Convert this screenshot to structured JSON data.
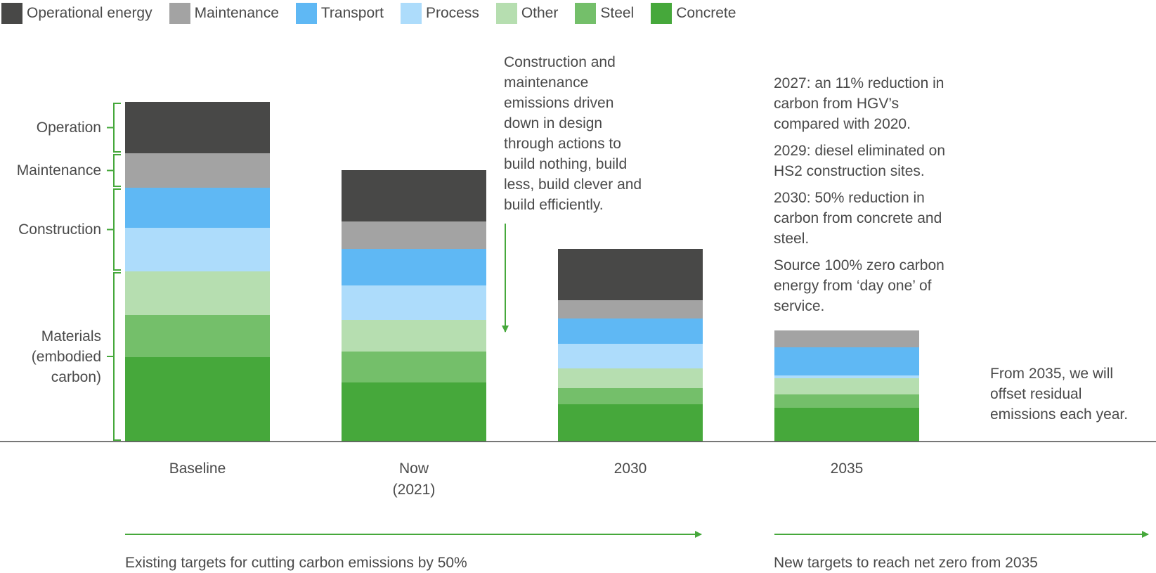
{
  "chart_data": {
    "type": "bar",
    "stacked": true,
    "categories": [
      "Baseline",
      "Now\n(2021)",
      "2030",
      "2035"
    ],
    "series": [
      {
        "name": "Concrete",
        "color": "#46a83b",
        "values": [
          120,
          84,
          53,
          48
        ]
      },
      {
        "name": "Steel",
        "color": "#74bf6a",
        "values": [
          60,
          44,
          23,
          19
        ]
      },
      {
        "name": "Other",
        "color": "#b6deb0",
        "values": [
          62,
          45,
          28,
          23
        ]
      },
      {
        "name": "Process",
        "color": "#addcfb",
        "values": [
          62,
          49,
          35,
          4
        ]
      },
      {
        "name": "Transport",
        "color": "#5fb8f4",
        "values": [
          57,
          52,
          36,
          40
        ]
      },
      {
        "name": "Maintenance",
        "color": "#a3a3a3",
        "values": [
          49,
          39,
          26,
          24
        ]
      },
      {
        "name": "Operational energy",
        "color": "#484847",
        "values": [
          73,
          73,
          73,
          0
        ]
      }
    ],
    "legend_order": [
      "Operational energy",
      "Maintenance",
      "Transport",
      "Process",
      "Other",
      "Steel",
      "Concrete"
    ],
    "ylim": [
      0,
      483
    ],
    "grid": false,
    "legend_position": "top-left",
    "group_labels": [
      {
        "label": "Operation",
        "series": [
          "Operational energy"
        ]
      },
      {
        "label": "Maintenance",
        "series": [
          "Maintenance"
        ]
      },
      {
        "label": "Construction",
        "series": [
          "Transport",
          "Process"
        ]
      },
      {
        "label": "Materials\n(embodied\ncarbon)",
        "series": [
          "Other",
          "Steel",
          "Concrete"
        ]
      }
    ],
    "annotations": {
      "design_note": "Construction and maintenance emissions driven down in design through actions to build nothing, build less, build clever and build efficiently.",
      "milestones": [
        "2027: an 11% reduction in carbon from HGV’s compared with 2020.",
        "2029: diesel eliminated on HS2 construction sites.",
        "2030: 50% reduction in carbon from concrete and steel.",
        "Source 100% zero carbon energy from ‘day one’ of service."
      ],
      "offset_note": "From 2035, we will offset residual emissions each year.",
      "existing_targets": "Existing targets for cutting carbon emissions by 50%",
      "new_targets": "New targets to reach net zero from 2035"
    },
    "accent_color": "#46a83b",
    "axis_color": "#4a4a4a"
  }
}
